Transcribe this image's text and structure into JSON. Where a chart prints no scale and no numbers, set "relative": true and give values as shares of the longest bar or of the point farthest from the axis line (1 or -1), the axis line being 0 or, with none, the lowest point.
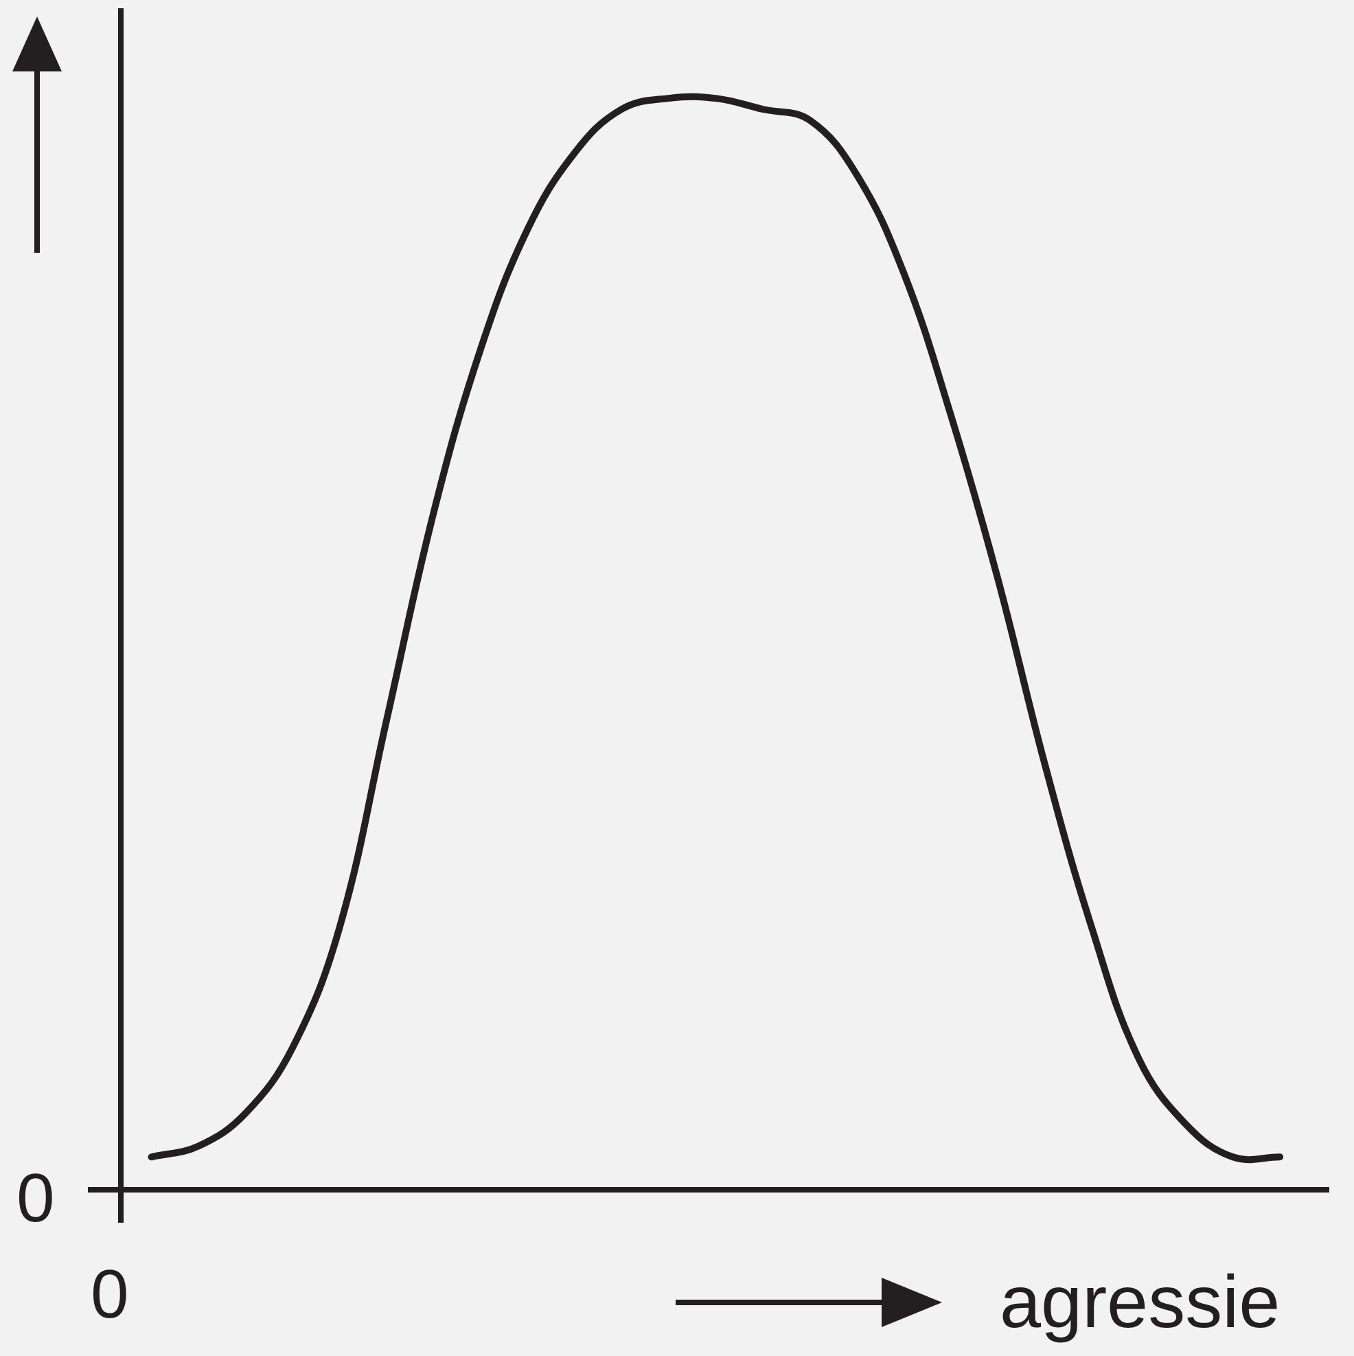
{
  "chart_data": {
    "type": "line",
    "relative": true,
    "xlabel": "agressie",
    "categories": [
      null,
      null,
      null,
      null,
      null,
      null,
      null,
      null,
      null,
      null,
      null,
      null,
      null,
      null,
      null,
      null,
      null,
      null,
      null,
      null,
      null,
      null,
      null,
      null,
      null
    ],
    "series": [
      {
        "color": "#231f20",
        "values": [
          0.03,
          0.04,
          0.07,
          0.13,
          0.24,
          0.43,
          0.62,
          0.77,
          0.88,
          0.95,
          0.99,
          1.0,
          1.0,
          0.99,
          0.98,
          0.93,
          0.84,
          0.71,
          0.56,
          0.39,
          0.24,
          0.12,
          0.06,
          0.03,
          0.03
        ]
      }
    ],
    "annotations": [
      "0",
      "0"
    ],
    "legend": false,
    "marker": "none",
    "line_style": "solid"
  }
}
